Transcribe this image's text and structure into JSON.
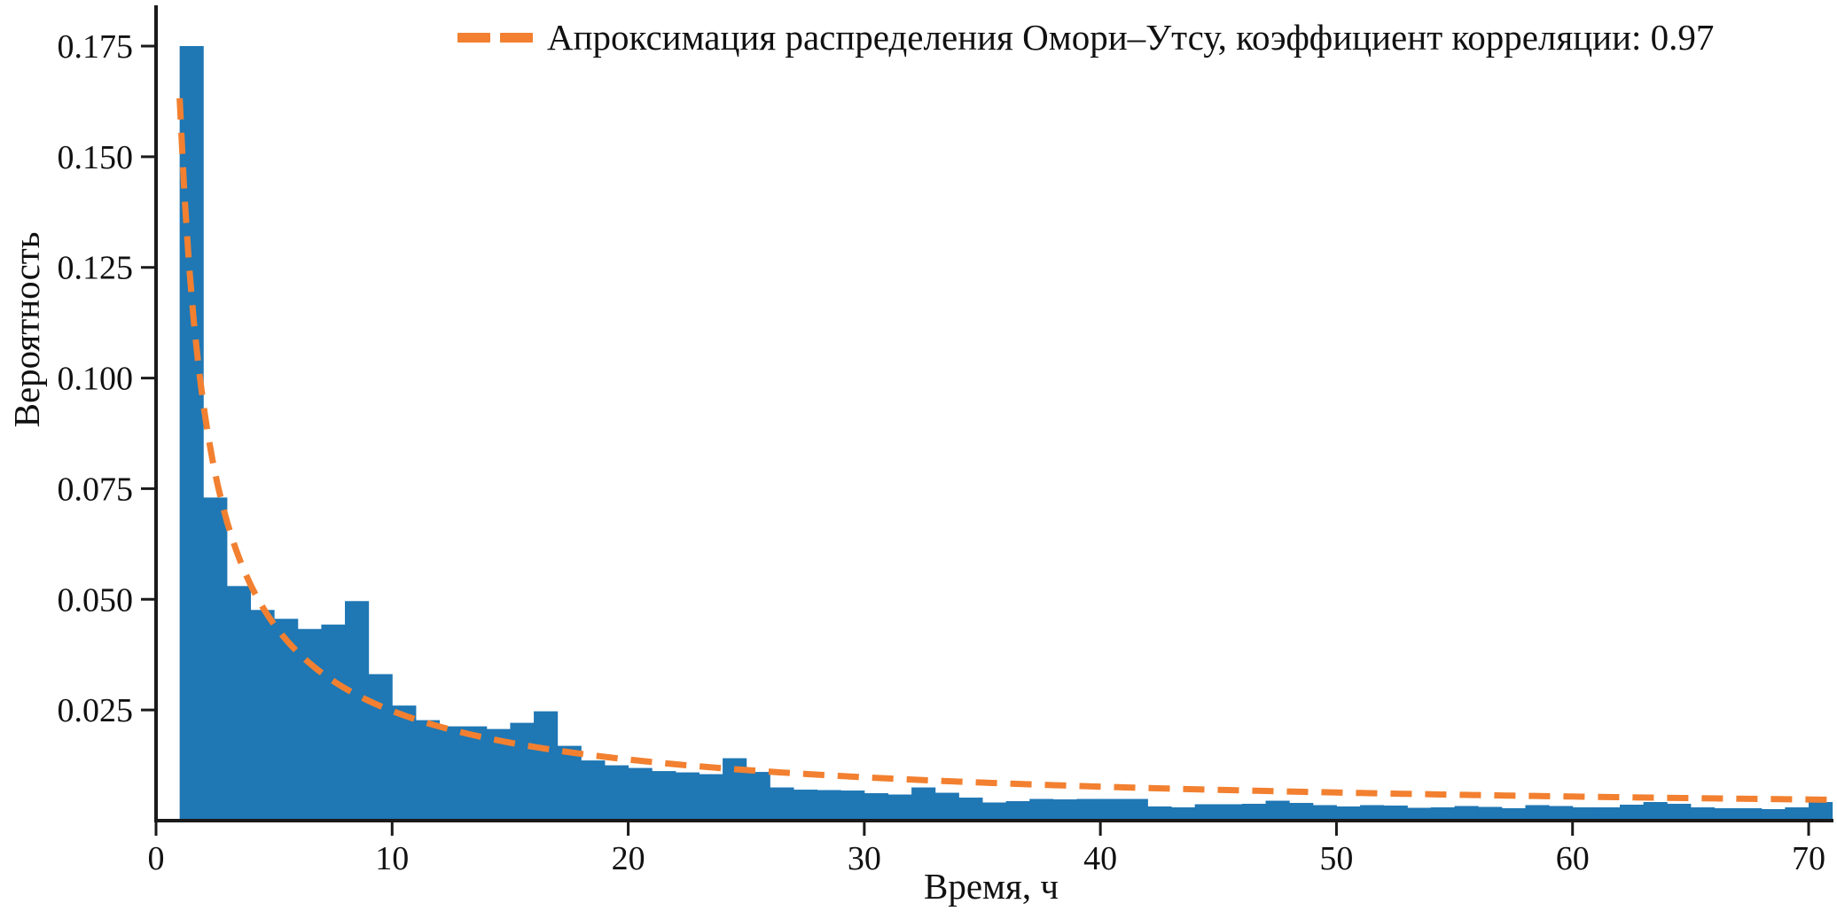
{
  "figure": {
    "background": "#ffffff"
  },
  "legend": {
    "label": "Апроксимация распределения Омори–Утсу, коэффициент корреляции: 0.97"
  },
  "axes": {
    "x_label": "Время, ч",
    "y_label": "Вероятность",
    "x_ticks": [
      0,
      10,
      20,
      30,
      40,
      50,
      60,
      70
    ],
    "y_ticks": [
      0.025,
      0.05,
      0.075,
      0.1,
      0.125,
      0.15,
      0.175
    ],
    "spine_color": "#1a1a1a"
  },
  "colors": {
    "bars": "#1f77b4",
    "fit_line": "#f28030"
  },
  "chart_data": {
    "type": "histogram_with_fit_line",
    "title": "",
    "xlabel": "Время, ч",
    "ylabel": "Вероятность",
    "xlim": [
      0,
      71
    ],
    "ylim": [
      0,
      0.1835
    ],
    "grid": false,
    "legend_position": "upper center-right",
    "bin_start": 1,
    "bin_width": 1,
    "values": [
      0.175,
      0.073,
      0.053,
      0.0476,
      0.0456,
      0.0433,
      0.0443,
      0.0496,
      0.0331,
      0.026,
      0.0227,
      0.0213,
      0.0213,
      0.0207,
      0.0221,
      0.0247,
      0.0169,
      0.0136,
      0.0125,
      0.0119,
      0.0112,
      0.0109,
      0.0105,
      0.0141,
      0.011,
      0.0075,
      0.007,
      0.0069,
      0.0068,
      0.0062,
      0.0059,
      0.0075,
      0.0063,
      0.0052,
      0.0041,
      0.0044,
      0.0049,
      0.0048,
      0.0049,
      0.0049,
      0.0049,
      0.0032,
      0.003,
      0.0037,
      0.0037,
      0.0038,
      0.0045,
      0.004,
      0.0035,
      0.0032,
      0.0035,
      0.0034,
      0.0029,
      0.003,
      0.0033,
      0.0031,
      0.0028,
      0.0035,
      0.0033,
      0.003,
      0.003,
      0.0036,
      0.0042,
      0.0038,
      0.003,
      0.0028,
      0.0028,
      0.0026,
      0.003,
      0.0042
    ],
    "fit_curve": {
      "name": "Omori-Utsu approximation",
      "model": "K / (c + t)^p",
      "K": 0.177,
      "c": 0.1,
      "p": 0.85,
      "t_range": [
        1,
        71
      ],
      "correlation_coefficient": 0.97,
      "style": "dashed"
    }
  }
}
